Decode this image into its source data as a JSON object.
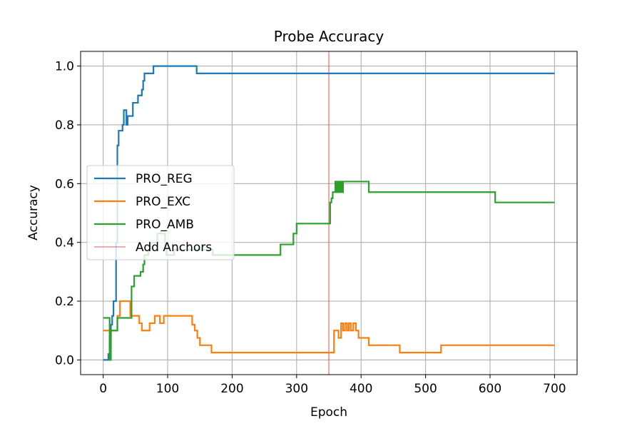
{
  "chart_data": {
    "type": "line",
    "title": "Probe Accuracy",
    "xlabel": "Epoch",
    "ylabel": "Accuracy",
    "xlim": [
      -35,
      735
    ],
    "ylim": [
      -0.05,
      1.05
    ],
    "xticks": [
      0,
      100,
      200,
      300,
      400,
      500,
      600,
      700
    ],
    "yticks": [
      0.0,
      0.2,
      0.4,
      0.6,
      0.8,
      1.0
    ],
    "xtick_labels": [
      "0",
      "100",
      "200",
      "300",
      "400",
      "500",
      "600",
      "700"
    ],
    "ytick_labels": [
      "0.0",
      "0.2",
      "0.4",
      "0.6",
      "0.8",
      "1.0"
    ],
    "grid": true,
    "legend_position": "center-left",
    "series": [
      {
        "name": "PRO_REG",
        "color": "#1f77b4",
        "step": true,
        "x": [
          0,
          5,
          8,
          10,
          12,
          14,
          16,
          18,
          20,
          22,
          24,
          26,
          30,
          32,
          34,
          36,
          38,
          40,
          42,
          46,
          48,
          50,
          54,
          58,
          60,
          62,
          64,
          68,
          70,
          74,
          78,
          82,
          140,
          145,
          700
        ],
        "y": [
          0.0,
          0.0,
          0.02,
          0.08,
          0.12,
          0.15,
          0.2,
          0.2,
          0.4,
          0.73,
          0.78,
          0.78,
          0.8,
          0.85,
          0.85,
          0.8,
          0.83,
          0.83,
          0.83,
          0.875,
          0.875,
          0.875,
          0.9,
          0.9,
          0.92,
          0.95,
          0.975,
          0.975,
          0.975,
          0.975,
          1.0,
          1.0,
          1.0,
          0.975,
          0.975
        ]
      },
      {
        "name": "PRO_EXC",
        "color": "#ff7f0e",
        "step": true,
        "x": [
          0,
          18,
          22,
          24,
          26,
          38,
          42,
          56,
          60,
          64,
          72,
          80,
          84,
          88,
          92,
          94,
          130,
          138,
          142,
          146,
          150,
          164,
          168,
          352,
          358,
          360,
          365,
          369,
          372,
          375,
          378,
          381,
          384,
          388,
          392,
          396,
          400,
          406,
          412,
          428,
          446,
          460,
          500,
          520,
          524,
          700
        ],
        "y": [
          0.1,
          0.1,
          0.15,
          0.15,
          0.2,
          0.2,
          0.15,
          0.125,
          0.1,
          0.1,
          0.125,
          0.15,
          0.15,
          0.125,
          0.125,
          0.15,
          0.15,
          0.12,
          0.1,
          0.075,
          0.05,
          0.05,
          0.025,
          0.025,
          0.1,
          0.1,
          0.075,
          0.125,
          0.1,
          0.125,
          0.1,
          0.125,
          0.1,
          0.125,
          0.1,
          0.075,
          0.075,
          0.075,
          0.05,
          0.05,
          0.05,
          0.025,
          0.025,
          0.025,
          0.05,
          0.05
        ]
      },
      {
        "name": "PRO_AMB",
        "color": "#2ca02c",
        "step": true,
        "x": [
          0,
          8,
          10,
          12,
          20,
          22,
          26,
          38,
          44,
          48,
          52,
          58,
          62,
          64,
          68,
          70,
          74,
          84,
          92,
          96,
          98,
          110,
          150,
          170,
          270,
          275,
          290,
          295,
          300,
          340,
          352,
          354,
          356,
          360,
          362,
          364,
          366,
          368,
          370,
          372,
          374,
          376,
          378,
          380,
          408,
          412,
          416,
          540,
          560,
          604,
          608,
          700
        ],
        "y": [
          0.143,
          0.143,
          0.0,
          0.1,
          0.1,
          0.143,
          0.143,
          0.143,
          0.25,
          0.286,
          0.286,
          0.3,
          0.325,
          0.357,
          0.357,
          0.375,
          0.4,
          0.43,
          0.43,
          0.38,
          0.357,
          0.375,
          0.375,
          0.357,
          0.357,
          0.393,
          0.393,
          0.43,
          0.464,
          0.464,
          0.536,
          0.55,
          0.571,
          0.607,
          0.571,
          0.607,
          0.571,
          0.607,
          0.571,
          0.607,
          0.607,
          0.607,
          0.607,
          0.607,
          0.607,
          0.571,
          0.571,
          0.571,
          0.571,
          0.571,
          0.536,
          0.536
        ]
      }
    ],
    "vlines": [
      {
        "name": "Add Anchors",
        "x": 350,
        "color": "#d62728"
      }
    ]
  }
}
